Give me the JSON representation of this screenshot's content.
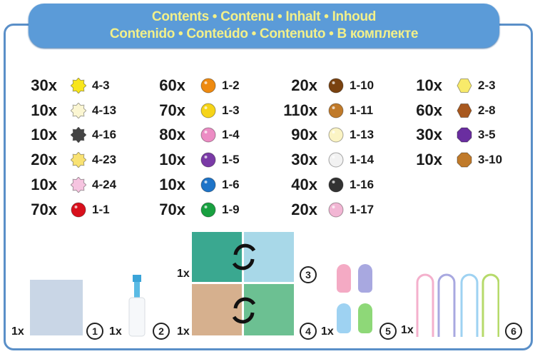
{
  "header": {
    "line1": "Contents • Contenu • Inhalt • Inhoud",
    "line2": "Contenido • Conteúdo • Contenuto • В комплекте"
  },
  "beads": [
    [
      {
        "qty": "30x",
        "code": "4-3",
        "shape": "star",
        "color": "#f8e61c"
      },
      {
        "qty": "10x",
        "code": "4-13",
        "shape": "star",
        "color": "#fbf6d2"
      },
      {
        "qty": "10x",
        "code": "4-16",
        "shape": "star",
        "color": "#444444"
      },
      {
        "qty": "20x",
        "code": "4-23",
        "shape": "star",
        "color": "#f9e272"
      },
      {
        "qty": "10x",
        "code": "4-24",
        "shape": "star",
        "color": "#f6c4e0"
      },
      {
        "qty": "70x",
        "code": "1-1",
        "shape": "circle",
        "color": "#d8101c"
      }
    ],
    [
      {
        "qty": "60x",
        "code": "1-2",
        "shape": "circle",
        "color": "#ee8a10"
      },
      {
        "qty": "70x",
        "code": "1-3",
        "shape": "circle",
        "color": "#f6d418"
      },
      {
        "qty": "80x",
        "code": "1-4",
        "shape": "circle",
        "color": "#ec8cc4"
      },
      {
        "qty": "10x",
        "code": "1-5",
        "shape": "circle",
        "color": "#7a3aa6"
      },
      {
        "qty": "10x",
        "code": "1-6",
        "shape": "circle",
        "color": "#1e74c8"
      },
      {
        "qty": "70x",
        "code": "1-9",
        "shape": "circle",
        "color": "#18a040"
      }
    ],
    [
      {
        "qty": "20x",
        "code": "1-10",
        "shape": "circle",
        "color": "#7a4210"
      },
      {
        "qty": "110x",
        "code": "1-11",
        "shape": "circle",
        "color": "#c07a2a"
      },
      {
        "qty": "90x",
        "code": "1-13",
        "shape": "circle",
        "color": "#fbf4c4"
      },
      {
        "qty": "30x",
        "code": "1-14",
        "shape": "circle",
        "color": "#f2f2f2"
      },
      {
        "qty": "40x",
        "code": "1-16",
        "shape": "circle",
        "color": "#333333"
      },
      {
        "qty": "20x",
        "code": "1-17",
        "shape": "circle",
        "color": "#f2b6d4"
      }
    ],
    [
      {
        "qty": "10x",
        "code": "2-3",
        "shape": "hexagon",
        "color": "#f8ea6a"
      },
      {
        "qty": "60x",
        "code": "2-8",
        "shape": "hexagon",
        "color": "#a8581e"
      },
      {
        "qty": "30x",
        "code": "3-5",
        "shape": "octagon",
        "color": "#6a2ea0"
      },
      {
        "qty": "10x",
        "code": "3-10",
        "shape": "octagon",
        "color": "#c07a2a"
      }
    ]
  ],
  "items": [
    {
      "qty": "1x",
      "number": "1",
      "name": "pegboard"
    },
    {
      "qty": "1x",
      "number": "2",
      "name": "spray-bottle"
    },
    {
      "qty": "1x",
      "number": "3",
      "name": "template-sheet"
    },
    {
      "qty": "1x",
      "number": "4",
      "name": "template-sheet"
    },
    {
      "qty": "1x",
      "number": "5",
      "name": "clips"
    },
    {
      "qty": "1x",
      "number": "6",
      "name": "straps"
    }
  ],
  "colors": {
    "frame": "#5a8fc8",
    "header_bg": "#5b9bd8",
    "header_text": "#f2f08a"
  }
}
